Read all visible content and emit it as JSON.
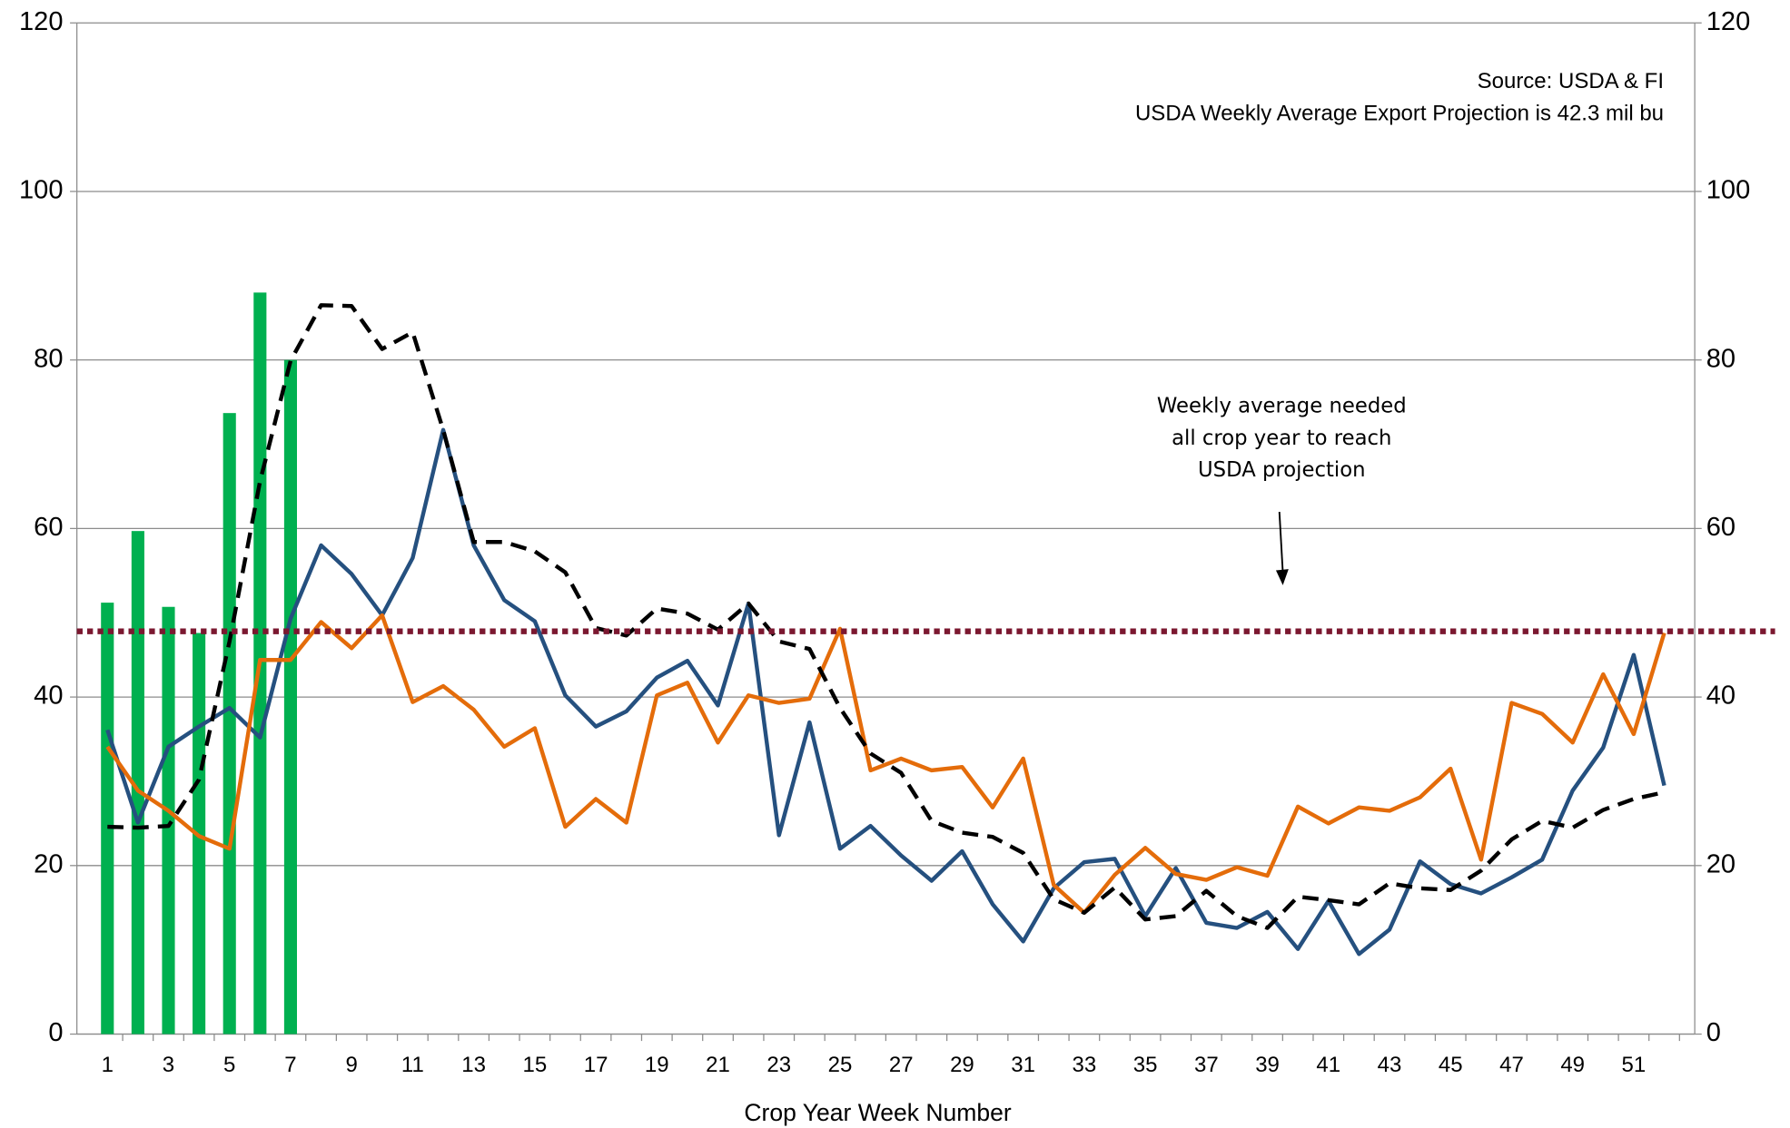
{
  "chart_data": {
    "type": "combo",
    "x_label": "Crop Year Week Number",
    "annotations": [
      "Source: USDA & FI",
      "USDA Weekly Average Export Projection is 42.3 mil bu"
    ],
    "callout": [
      "Weekly average needed",
      "all crop year to reach",
      "USDA projection"
    ],
    "x": [
      1,
      2,
      3,
      4,
      5,
      6,
      7,
      8,
      9,
      10,
      11,
      12,
      13,
      14,
      15,
      16,
      17,
      18,
      19,
      20,
      21,
      22,
      23,
      24,
      25,
      26,
      27,
      28,
      29,
      30,
      31,
      32,
      33,
      34,
      35,
      36,
      37,
      38,
      39,
      40,
      41,
      42,
      43,
      44,
      45,
      46,
      47,
      48,
      49,
      50,
      51,
      52
    ],
    "xlim": [
      0,
      53
    ],
    "xticks": [
      1,
      3,
      5,
      7,
      9,
      11,
      13,
      15,
      17,
      19,
      21,
      23,
      25,
      27,
      29,
      31,
      33,
      35,
      37,
      39,
      41,
      43,
      45,
      47,
      49,
      51
    ],
    "ylim": [
      0,
      120
    ],
    "yticks": [
      0,
      20,
      40,
      60,
      80,
      100,
      120
    ],
    "y2lim": [
      0,
      120
    ],
    "y2ticks": [
      0,
      20,
      40,
      60,
      80,
      100,
      120
    ],
    "grid": true,
    "reference_line": {
      "value": 47.8,
      "color": "#7b1830"
    },
    "series": [
      {
        "type": "bar",
        "color": "#00b050",
        "x": [
          1,
          2,
          3,
          4,
          5,
          6,
          7
        ],
        "values": [
          51.2,
          59.7,
          50.7,
          47.6,
          73.7,
          88.0,
          80.0
        ]
      },
      {
        "type": "line",
        "color": "#25507f",
        "values": [
          36.1,
          25.1,
          34.1,
          36.5,
          38.7,
          35.2,
          49.3,
          58.0,
          54.6,
          49.7,
          56.5,
          71.7,
          58.0,
          51.5,
          49.0,
          40.2,
          36.5,
          38.3,
          42.3,
          44.3,
          39.0,
          51.1,
          23.6,
          37.0,
          22.0,
          24.7,
          21.2,
          18.2,
          21.7,
          15.4,
          11.0,
          17.3,
          20.4,
          20.8,
          14.0,
          19.7,
          13.2,
          12.6,
          14.5,
          10.1,
          15.8,
          9.5,
          12.4,
          20.5,
          17.8,
          16.7,
          18.6,
          20.7,
          28.9,
          34.0,
          45.0,
          29.5
        ]
      },
      {
        "type": "line",
        "color": "#e46c0a",
        "values": [
          34.1,
          28.9,
          26.5,
          23.5,
          22.0,
          44.4,
          44.4,
          48.9,
          45.8,
          49.7,
          39.4,
          41.3,
          38.5,
          34.1,
          36.3,
          24.6,
          27.9,
          25.1,
          40.2,
          41.7,
          34.6,
          40.2,
          39.3,
          39.8,
          48.1,
          31.3,
          32.7,
          31.3,
          31.7,
          26.9,
          32.7,
          17.7,
          14.4,
          18.9,
          22.1,
          19.0,
          18.3,
          19.8,
          18.8,
          27.0,
          25.0,
          26.9,
          26.5,
          28.1,
          31.5,
          20.7,
          39.3,
          38.0,
          34.6,
          42.7,
          35.6,
          47.6
        ]
      },
      {
        "type": "line",
        "color": "#000000",
        "dash": true,
        "values": [
          24.6,
          24.5,
          24.7,
          30.2,
          46.6,
          65.6,
          79.9,
          86.5,
          86.4,
          81.3,
          83.3,
          71.7,
          58.4,
          58.4,
          57.3,
          54.8,
          48.2,
          47.3,
          50.5,
          49.9,
          48.0,
          51.1,
          46.6,
          45.7,
          38.7,
          33.3,
          31.0,
          25.3,
          23.9,
          23.4,
          21.5,
          16.0,
          14.4,
          17.4,
          13.6,
          14.0,
          17.0,
          14.0,
          12.6,
          16.3,
          15.9,
          15.4,
          17.9,
          17.3,
          17.1,
          19.4,
          23.1,
          25.3,
          24.5,
          26.6,
          27.9,
          28.7
        ]
      }
    ]
  }
}
